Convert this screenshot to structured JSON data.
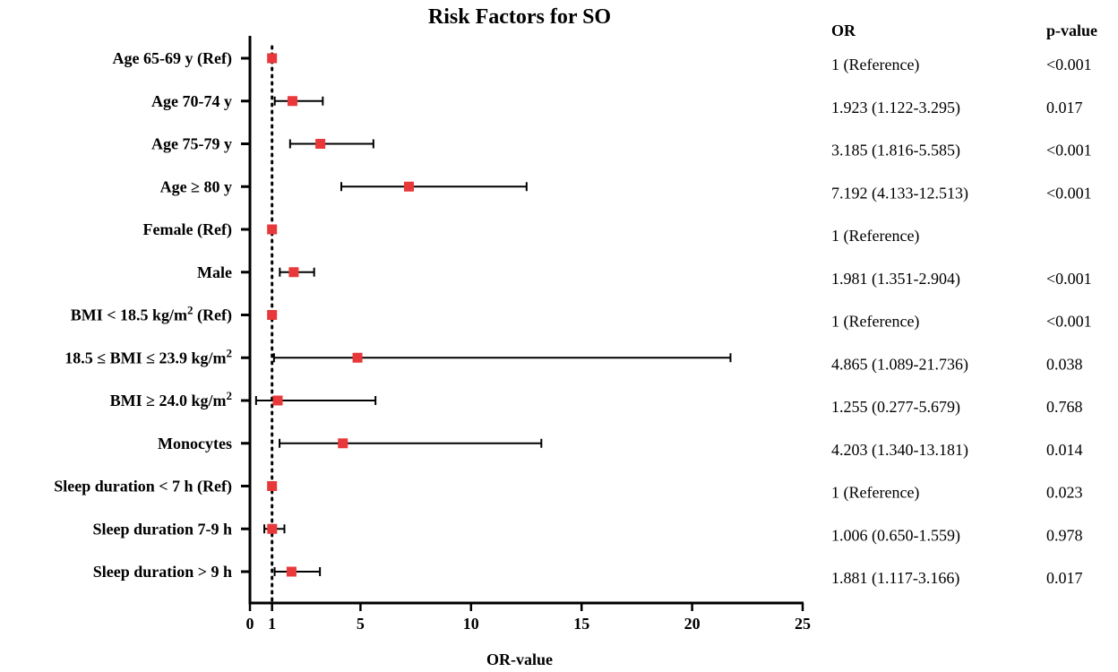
{
  "chart_data": {
    "type": "forest",
    "title": "Risk Factors for SO",
    "xlabel": "OR-value",
    "ylabel": "",
    "xlim": [
      0,
      25
    ],
    "xticks": [
      "0",
      "1",
      "5",
      "10",
      "15",
      "20",
      "25"
    ],
    "xtick_values": [
      0,
      1,
      5,
      10,
      15,
      20,
      25
    ],
    "reference_line": 1,
    "columns": {
      "or": "OR",
      "p": "p-value"
    },
    "rows": [
      {
        "label": "Age 65-69 y (Ref)",
        "or": 1,
        "lo": 1,
        "hi": 1,
        "or_text": "1 (Reference)",
        "p_text": "<0.001"
      },
      {
        "label": "Age 70-74 y",
        "or": 1.923,
        "lo": 1.122,
        "hi": 3.295,
        "or_text": "1.923 (1.122-3.295)",
        "p_text": "0.017"
      },
      {
        "label": "Age 75-79 y",
        "or": 3.185,
        "lo": 1.816,
        "hi": 5.585,
        "or_text": "3.185 (1.816-5.585)",
        "p_text": "<0.001"
      },
      {
        "label": "Age ≥  80 y",
        "or": 7.192,
        "lo": 4.133,
        "hi": 12.513,
        "or_text": "7.192 (4.133-12.513)",
        "p_text": "<0.001"
      },
      {
        "label": "Female (Ref)",
        "or": 1,
        "lo": 1,
        "hi": 1,
        "or_text": "1 (Reference)",
        "p_text": ""
      },
      {
        "label": "Male",
        "or": 1.981,
        "lo": 1.351,
        "hi": 2.904,
        "or_text": "1.981 (1.351-2.904)",
        "p_text": "<0.001"
      },
      {
        "label": "BMI < 18.5 kg/m",
        "sup": "2",
        "suffix": " (Ref)",
        "or": 1,
        "lo": 1,
        "hi": 1,
        "or_text": "1 (Reference)",
        "p_text": "<0.001"
      },
      {
        "label": "18.5 ≤  BMI ≤  23.9 kg/m",
        "sup": "2",
        "suffix": "",
        "or": 4.865,
        "lo": 1.089,
        "hi": 21.736,
        "or_text": "4.865 (1.089-21.736)",
        "p_text": "0.038"
      },
      {
        "label": "BMI ≥  24.0 kg/m",
        "sup": "2",
        "suffix": "",
        "or": 1.255,
        "lo": 0.277,
        "hi": 5.679,
        "or_text": "1.255 (0.277-5.679)",
        "p_text": "0.768"
      },
      {
        "label": "Monocytes",
        "or": 4.203,
        "lo": 1.34,
        "hi": 13.181,
        "or_text": "4.203 (1.340-13.181)",
        "p_text": "0.014"
      },
      {
        "label": "Sleep duration < 7 h (Ref)",
        "or": 1,
        "lo": 1,
        "hi": 1,
        "or_text": "1 (Reference)",
        "p_text": "0.023"
      },
      {
        "label": "Sleep duration 7-9 h",
        "or": 1.006,
        "lo": 0.65,
        "hi": 1.559,
        "or_text": "1.006 (0.650-1.559)",
        "p_text": "0.978"
      },
      {
        "label": "Sleep duration > 9 h",
        "or": 1.881,
        "lo": 1.117,
        "hi": 3.166,
        "or_text": "1.881 (1.117-3.166)",
        "p_text": "0.017"
      }
    ],
    "colors": {
      "marker": "#e8383a",
      "line": "#000000"
    }
  }
}
